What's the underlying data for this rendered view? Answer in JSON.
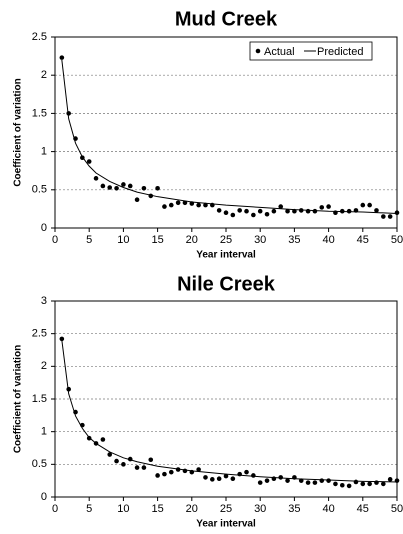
{
  "chart_data": [
    {
      "type": "scatter",
      "title": "Mud Creek",
      "x_label": "Year interval",
      "y_label": "Coefficient of variation",
      "xlim": [
        0,
        50
      ],
      "xticks": [
        0,
        5,
        10,
        15,
        20,
        25,
        30,
        35,
        40,
        45,
        50
      ],
      "ylim": [
        0,
        2.5
      ],
      "yticks": [
        0,
        0.5,
        1,
        1.5,
        2,
        2.5
      ],
      "grid": true,
      "legend": "upper right",
      "x": [
        1,
        2,
        3,
        4,
        5,
        6,
        7,
        8,
        9,
        10,
        11,
        12,
        13,
        14,
        15,
        16,
        17,
        18,
        19,
        20,
        21,
        22,
        23,
        24,
        25,
        26,
        27,
        28,
        29,
        30,
        31,
        32,
        33,
        34,
        35,
        36,
        37,
        38,
        39,
        40,
        41,
        42,
        43,
        44,
        45,
        46,
        47,
        48,
        49,
        50
      ],
      "series": [
        {
          "name": "Actual",
          "mode": "markers",
          "color": "#000000",
          "values": [
            2.23,
            1.5,
            1.17,
            0.92,
            0.87,
            0.65,
            0.55,
            0.53,
            0.52,
            0.57,
            0.55,
            0.37,
            0.52,
            0.42,
            0.52,
            0.28,
            0.3,
            0.33,
            0.33,
            0.32,
            0.3,
            0.3,
            0.3,
            0.23,
            0.2,
            0.17,
            0.23,
            0.22,
            0.17,
            0.22,
            0.18,
            0.22,
            0.28,
            0.22,
            0.22,
            0.23,
            0.22,
            0.22,
            0.27,
            0.28,
            0.2,
            0.22,
            0.22,
            0.23,
            0.3,
            0.3,
            0.23,
            0.15,
            0.15,
            0.2
          ]
        },
        {
          "name": "Predicted",
          "mode": "line",
          "color": "#000000",
          "x": [
            1,
            2,
            3,
            4,
            5,
            6,
            8,
            10,
            12,
            15,
            20,
            25,
            30,
            35,
            40,
            45,
            50
          ],
          "values": [
            2.2,
            1.43,
            1.11,
            0.93,
            0.81,
            0.72,
            0.61,
            0.53,
            0.47,
            0.41,
            0.34,
            0.3,
            0.27,
            0.24,
            0.22,
            0.21,
            0.19
          ]
        }
      ]
    },
    {
      "type": "scatter",
      "title": "Nile Creek",
      "x_label": "Year interval",
      "y_label": "Coefficient of variation",
      "xlim": [
        0,
        50
      ],
      "xticks": [
        0,
        5,
        10,
        15,
        20,
        25,
        30,
        35,
        40,
        45,
        50
      ],
      "ylim": [
        0,
        3
      ],
      "yticks": [
        0,
        0.5,
        1,
        1.5,
        2,
        2.5,
        3
      ],
      "grid": true,
      "x": [
        1,
        2,
        3,
        4,
        5,
        6,
        7,
        8,
        9,
        10,
        11,
        12,
        13,
        14,
        15,
        16,
        17,
        18,
        19,
        20,
        21,
        22,
        23,
        24,
        25,
        26,
        27,
        28,
        29,
        30,
        31,
        32,
        33,
        34,
        35,
        36,
        37,
        38,
        39,
        40,
        41,
        42,
        43,
        44,
        45,
        46,
        47,
        48,
        49,
        50
      ],
      "series": [
        {
          "mode": "markers",
          "color": "#000000",
          "values": [
            2.42,
            1.65,
            1.3,
            1.1,
            0.9,
            0.82,
            0.88,
            0.65,
            0.55,
            0.5,
            0.58,
            0.45,
            0.45,
            0.57,
            0.33,
            0.35,
            0.38,
            0.42,
            0.4,
            0.38,
            0.42,
            0.3,
            0.27,
            0.28,
            0.32,
            0.28,
            0.35,
            0.38,
            0.33,
            0.22,
            0.25,
            0.28,
            0.3,
            0.25,
            0.3,
            0.25,
            0.22,
            0.22,
            0.25,
            0.25,
            0.2,
            0.18,
            0.17,
            0.23,
            0.2,
            0.2,
            0.22,
            0.2,
            0.27,
            0.25
          ]
        },
        {
          "mode": "line",
          "color": "#000000",
          "x": [
            1,
            2,
            3,
            4,
            5,
            6,
            8,
            10,
            12,
            15,
            20,
            25,
            30,
            35,
            40,
            45,
            50
          ],
          "values": [
            2.4,
            1.58,
            1.24,
            1.05,
            0.91,
            0.82,
            0.69,
            0.6,
            0.54,
            0.47,
            0.4,
            0.35,
            0.31,
            0.28,
            0.26,
            0.24,
            0.23
          ]
        }
      ]
    }
  ]
}
